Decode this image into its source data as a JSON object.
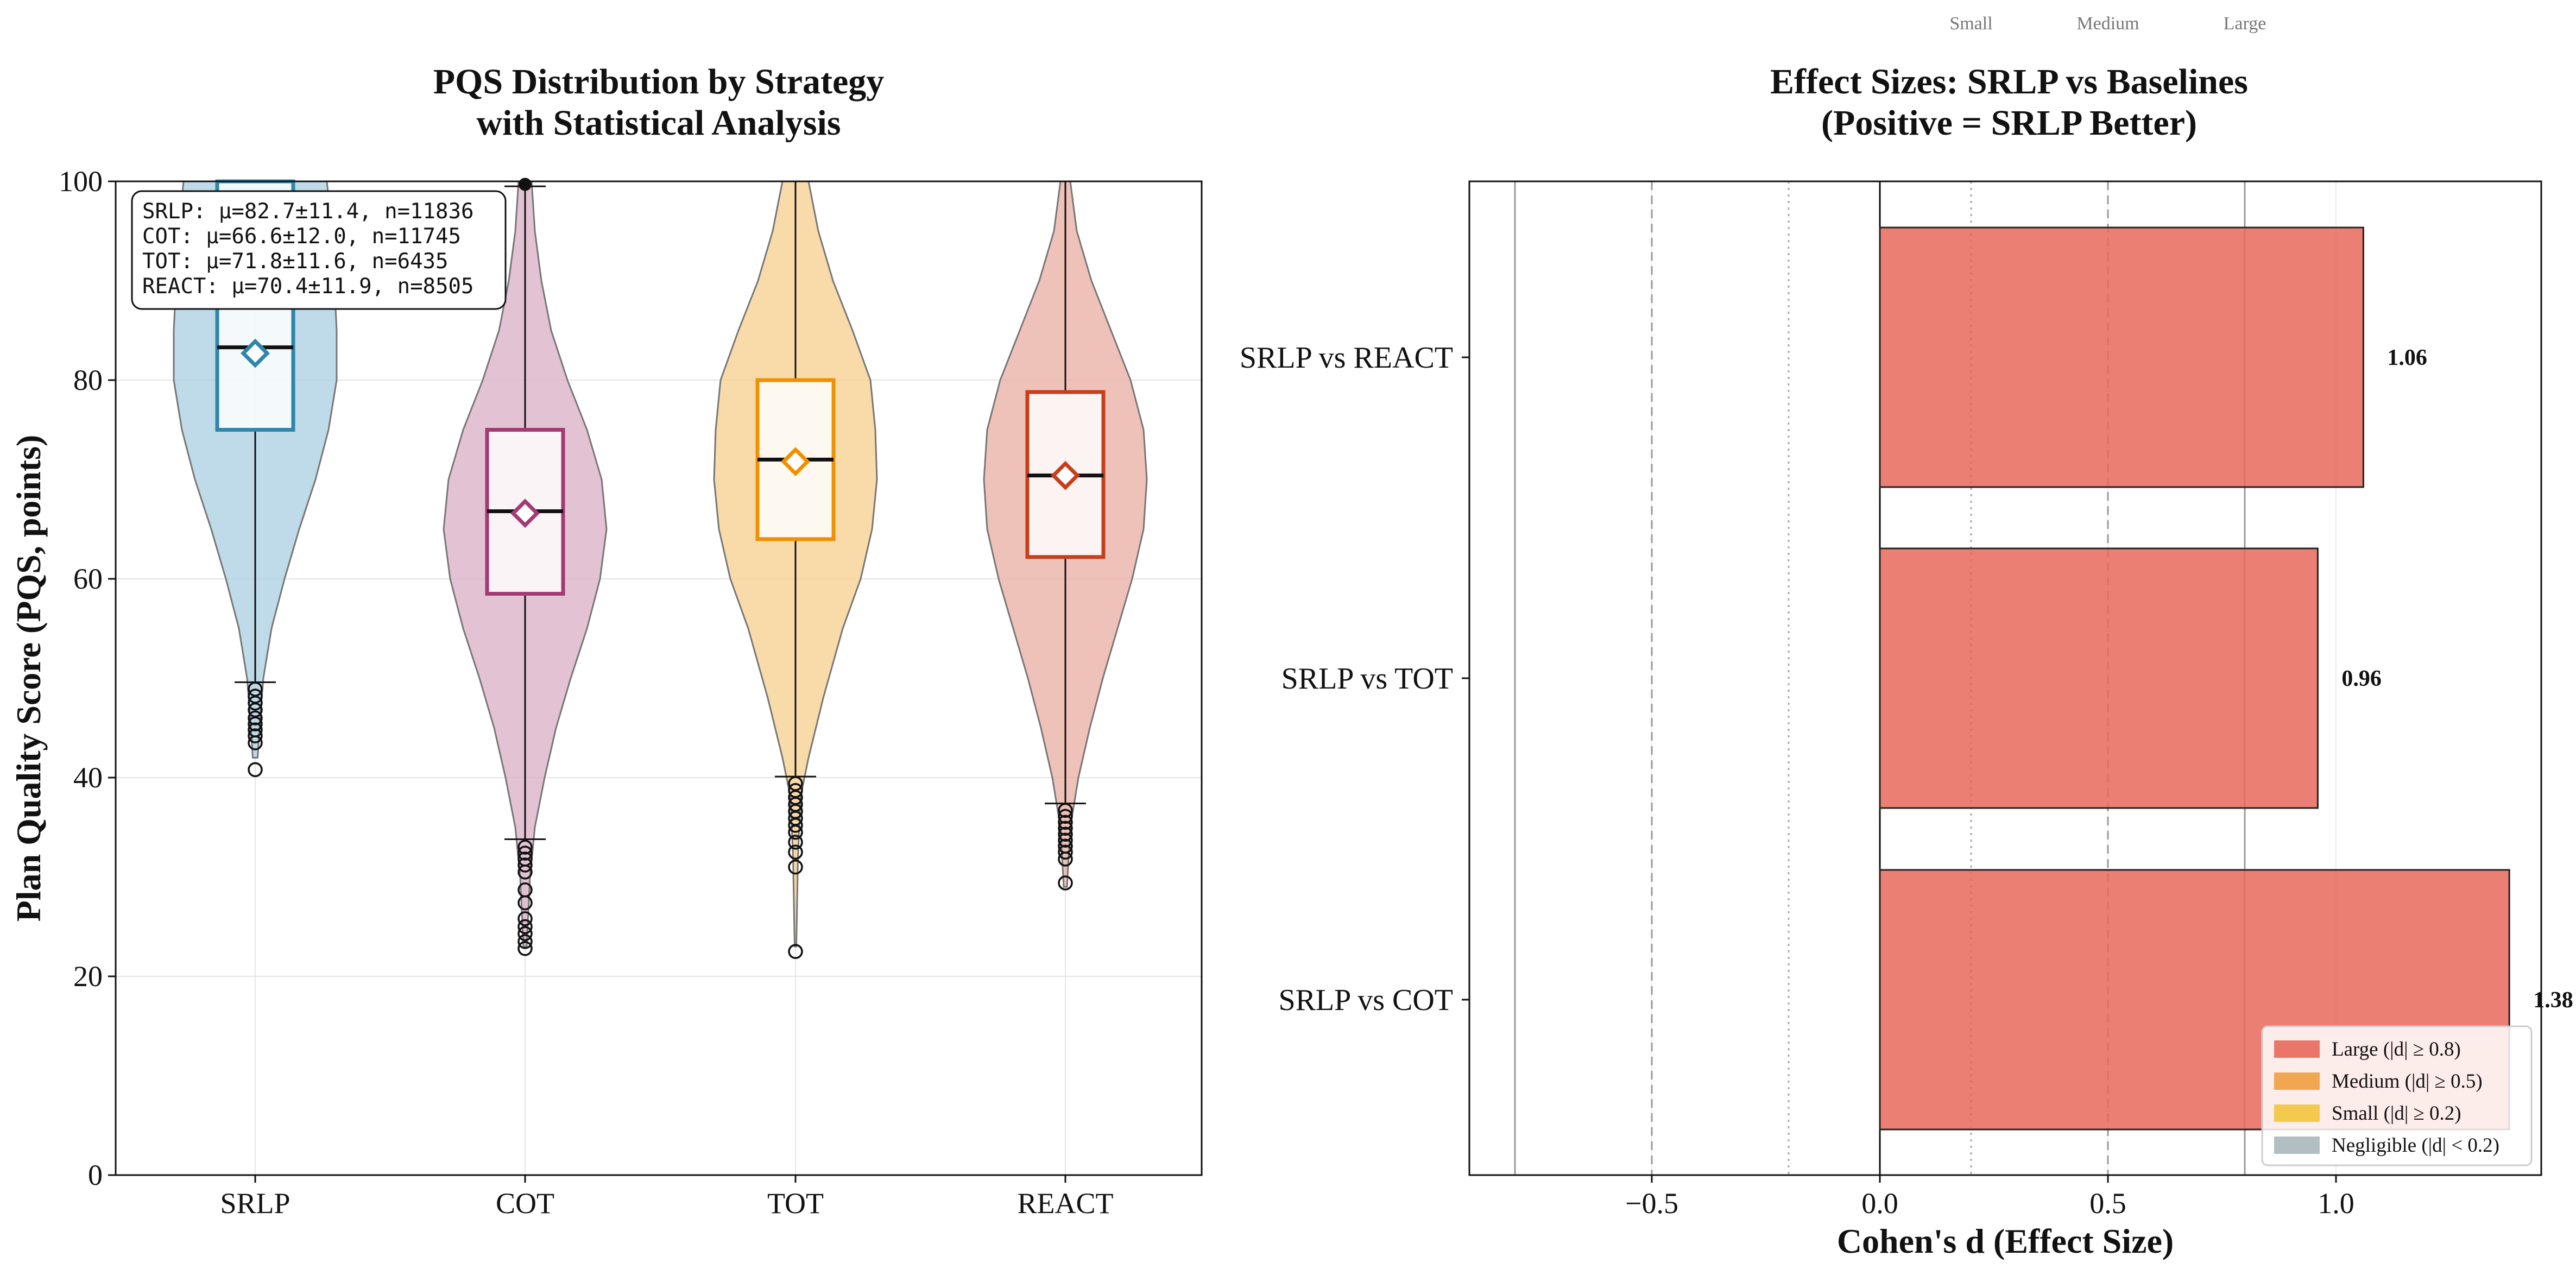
{
  "chart_data": [
    {
      "type": "violin",
      "title_lines": [
        "PQS Distribution by Strategy",
        "with Statistical Analysis"
      ],
      "xlabel": "",
      "ylabel": "Plan Quality Score (PQS, points)",
      "ylim": [
        0,
        100
      ],
      "yticks": [
        "0",
        "20",
        "40",
        "60",
        "80",
        "100"
      ],
      "grid": true,
      "stats_box_lines": [
        "SRLP: μ=82.7±11.4, n=11836",
        "COT: μ=66.6±12.0, n=11745",
        "TOT: μ=71.8±11.6, n=6435",
        "REACT: μ=70.4±11.9, n=8505"
      ],
      "groups": [
        {
          "name": "SRLP",
          "color": "#2e86ab",
          "fill": "#a9cde0",
          "mean": 82.7,
          "median": 83.3,
          "q1": 75.0,
          "q3": 100.0,
          "whisker_low": 49.6,
          "whisker_high": 100.0,
          "outliers": [
            40.8,
            43.5,
            44.2,
            44.8,
            45.4,
            46.0,
            46.8,
            47.5,
            48.2,
            48.9
          ],
          "violin": [
            [
              42,
              0.03
            ],
            [
              46,
              0.06
            ],
            [
              50,
              0.1
            ],
            [
              55,
              0.2
            ],
            [
              60,
              0.36
            ],
            [
              65,
              0.54
            ],
            [
              70,
              0.74
            ],
            [
              75,
              0.9
            ],
            [
              80,
              1.0
            ],
            [
              85,
              1.0
            ],
            [
              90,
              0.97
            ],
            [
              95,
              0.94
            ],
            [
              100,
              0.88
            ]
          ]
        },
        {
          "name": "COT",
          "color": "#a23b72",
          "fill": "#d9aec6",
          "mean": 66.6,
          "median": 66.8,
          "q1": 58.5,
          "q3": 75.0,
          "whisker_low": 33.8,
          "whisker_high": 99.5,
          "outliers": [
            22.8,
            23.5,
            24.3,
            25.0,
            25.8,
            27.4,
            28.7,
            30.5,
            31.2,
            31.8,
            32.4,
            33.0
          ],
          "violin": [
            [
              23,
              0.02
            ],
            [
              30,
              0.06
            ],
            [
              35,
              0.12
            ],
            [
              40,
              0.24
            ],
            [
              45,
              0.38
            ],
            [
              50,
              0.56
            ],
            [
              55,
              0.76
            ],
            [
              60,
              0.92
            ],
            [
              65,
              1.0
            ],
            [
              70,
              0.94
            ],
            [
              75,
              0.76
            ],
            [
              80,
              0.52
            ],
            [
              85,
              0.32
            ],
            [
              90,
              0.2
            ],
            [
              95,
              0.12
            ],
            [
              100,
              0.08
            ]
          ]
        },
        {
          "name": "TOT",
          "color": "#f18f01",
          "fill": "#f7cf8e",
          "mean": 71.8,
          "median": 72.0,
          "q1": 64.0,
          "q3": 80.0,
          "whisker_low": 40.1,
          "whisker_high": 100.0,
          "outliers": [
            22.5,
            31.0,
            32.5,
            33.5,
            34.5,
            35.2,
            35.9,
            36.6,
            37.3,
            38.0,
            38.7,
            39.4
          ],
          "violin": [
            [
              23,
              0.01
            ],
            [
              32,
              0.03
            ],
            [
              38,
              0.06
            ],
            [
              42,
              0.16
            ],
            [
              48,
              0.34
            ],
            [
              55,
              0.58
            ],
            [
              60,
              0.8
            ],
            [
              65,
              0.94
            ],
            [
              70,
              1.0
            ],
            [
              75,
              0.98
            ],
            [
              80,
              0.92
            ],
            [
              85,
              0.7
            ],
            [
              90,
              0.46
            ],
            [
              95,
              0.28
            ],
            [
              100,
              0.16
            ]
          ]
        },
        {
          "name": "REACT",
          "color": "#c73e1d",
          "fill": "#e8aea2",
          "mean": 70.4,
          "median": 70.4,
          "q1": 62.2,
          "q3": 78.8,
          "whisker_low": 37.4,
          "whisker_high": 100.0,
          "outliers": [
            29.4,
            31.8,
            32.5,
            33.1,
            33.7,
            34.3,
            34.9,
            35.5,
            36.1,
            36.7
          ],
          "violin": [
            [
              29,
              0.02
            ],
            [
              35,
              0.06
            ],
            [
              40,
              0.16
            ],
            [
              45,
              0.3
            ],
            [
              50,
              0.46
            ],
            [
              55,
              0.64
            ],
            [
              60,
              0.82
            ],
            [
              65,
              0.96
            ],
            [
              70,
              1.0
            ],
            [
              75,
              0.96
            ],
            [
              80,
              0.8
            ],
            [
              85,
              0.56
            ],
            [
              90,
              0.32
            ],
            [
              95,
              0.14
            ],
            [
              100,
              0.06
            ]
          ]
        }
      ]
    },
    {
      "type": "bar",
      "orientation": "horizontal",
      "title_lines": [
        "Effect Sizes: SRLP vs Baselines",
        "(Positive = SRLP Better)"
      ],
      "xlabel": "Cohen's d (Effect Size)",
      "xlim": [
        -0.9,
        1.45
      ],
      "xticks": [
        {
          "v": -0.5,
          "label": "−0.5"
        },
        {
          "v": 0.0,
          "label": "0.0"
        },
        {
          "v": 0.5,
          "label": "0.5"
        },
        {
          "v": 1.0,
          "label": "1.0"
        }
      ],
      "categories": [
        "SRLP vs REACT",
        "SRLP vs TOT",
        "SRLP vs COT"
      ],
      "values": [
        1.06,
        0.96,
        1.38
      ],
      "value_labels": [
        "1.06",
        "0.96",
        "1.38"
      ],
      "bar_color": "#e8695b",
      "threshold_labels": [
        {
          "v": 0.2,
          "label": "Small"
        },
        {
          "v": 0.5,
          "label": "Medium"
        },
        {
          "v": 0.8,
          "label": "Large"
        }
      ],
      "reference_lines": [
        {
          "v": -0.8,
          "style": "solid"
        },
        {
          "v": -0.5,
          "style": "dashed"
        },
        {
          "v": -0.2,
          "style": "dotted"
        },
        {
          "v": 0.0,
          "style": "zero"
        },
        {
          "v": 0.2,
          "style": "dotted"
        },
        {
          "v": 0.5,
          "style": "dashed"
        },
        {
          "v": 0.8,
          "style": "solid"
        }
      ],
      "legend_position": "lower-right",
      "legend": [
        {
          "label": "Large (|d| ≥ 0.8)",
          "color": "#e8695b"
        },
        {
          "label": "Medium (|d| ≥ 0.5)",
          "color": "#f0a040"
        },
        {
          "label": "Small (|d| ≥ 0.2)",
          "color": "#f2c53d"
        },
        {
          "label": "Negligible (|d| < 0.2)",
          "color": "#aab8bb"
        }
      ]
    }
  ]
}
